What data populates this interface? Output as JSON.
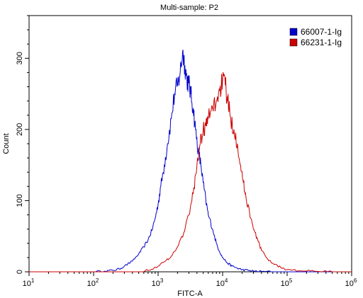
{
  "chart_data": {
    "type": "line",
    "title": "Multi-sample: P2",
    "xlabel": "FITC-A",
    "ylabel": "Count",
    "x_scale": "log",
    "xlim": [
      10,
      1000000
    ],
    "ylim": [
      0,
      360
    ],
    "grid": false,
    "legend_position": "top-right",
    "x_ticks": [
      {
        "value": 10,
        "base": "10",
        "exp": "1"
      },
      {
        "value": 100,
        "base": "10",
        "exp": "2"
      },
      {
        "value": 1000,
        "base": "10",
        "exp": "3"
      },
      {
        "value": 10000,
        "base": "10",
        "exp": "4"
      },
      {
        "value": 100000,
        "base": "10",
        "exp": "5"
      },
      {
        "value": 1000000,
        "base": "10",
        "exp": "6"
      }
    ],
    "y_ticks": [
      0,
      100,
      200,
      300
    ],
    "series": [
      {
        "name": "66007-1-Ig",
        "color": "#0000cc",
        "x": [
          100,
          150,
          200,
          250,
          300,
          400,
          500,
          600,
          700,
          800,
          900,
          1000,
          1100,
          1250,
          1400,
          1600,
          1800,
          2000,
          2200,
          2400,
          2600,
          2800,
          3000,
          3200,
          3500,
          3800,
          4200,
          4600,
          5000,
          5500,
          6000,
          7000,
          8000,
          9000,
          10000,
          12000,
          14000,
          17000,
          20000,
          25000,
          30000,
          40000,
          60000
        ],
        "y": [
          0,
          1,
          2,
          4,
          8,
          15,
          25,
          35,
          45,
          58,
          75,
          95,
          120,
          150,
          180,
          215,
          250,
          262,
          280,
          310,
          290,
          270,
          265,
          250,
          230,
          200,
          170,
          150,
          125,
          100,
          80,
          60,
          40,
          28,
          20,
          12,
          8,
          5,
          3,
          2,
          1,
          0.5,
          0
        ]
      },
      {
        "name": "66231-1-Ig",
        "color": "#cc0000",
        "x": [
          500,
          700,
          1000,
          1300,
          1600,
          2000,
          2500,
          3000,
          3500,
          4000,
          4500,
          5000,
          5500,
          6000,
          7000,
          8000,
          9000,
          10000,
          11000,
          12000,
          13000,
          15000,
          17000,
          19000,
          21000,
          23000,
          26000,
          30000,
          35000,
          40000,
          50000,
          60000,
          80000,
          100000,
          150000,
          200000,
          300000,
          500000
        ],
        "y": [
          0,
          2,
          8,
          15,
          22,
          35,
          55,
          80,
          110,
          150,
          180,
          200,
          205,
          215,
          230,
          240,
          255,
          270,
          262,
          240,
          220,
          200,
          180,
          150,
          125,
          105,
          85,
          60,
          45,
          30,
          18,
          12,
          6,
          3,
          1.5,
          1,
          0.5,
          0
        ]
      }
    ]
  }
}
